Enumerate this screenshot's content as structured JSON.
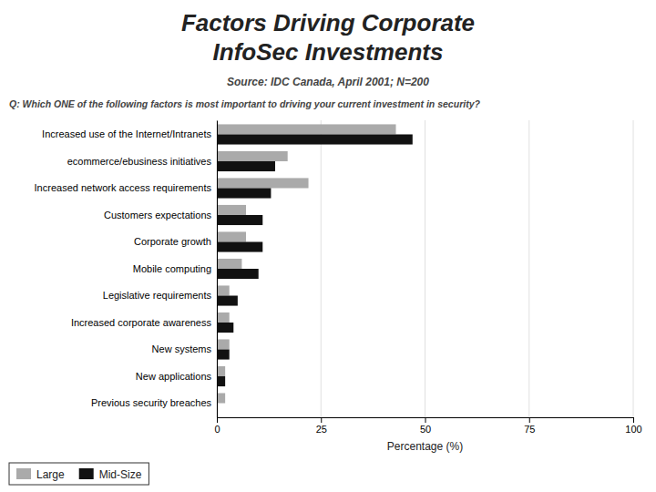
{
  "chart_data": {
    "type": "bar",
    "orientation": "horizontal",
    "title": [
      "Factors Driving Corporate",
      "InfoSec Investments"
    ],
    "subtitle": "Source: IDC Canada, April 2001; N=200",
    "annotations": [
      "Q: Which ONE of the following factors is most important to driving your current investment in security?"
    ],
    "categories": [
      "Increased use of the Internet/Intranets",
      "ecommerce/ebusiness initiatives",
      "Increased network access requirements",
      "Customers expectations",
      "Corporate growth",
      "Mobile computing",
      "Legislative requirements",
      "Increased corporate awareness",
      "New systems",
      "New applications",
      "Previous security breaches"
    ],
    "series": [
      {
        "name": "Large",
        "color": "#aaaaaa",
        "values": [
          43,
          17,
          22,
          7,
          7,
          6,
          3,
          3,
          3,
          2,
          2
        ]
      },
      {
        "name": "Mid-Size",
        "color": "#111111",
        "values": [
          47,
          14,
          13,
          11,
          11,
          10,
          5,
          4,
          3,
          2,
          0
        ]
      }
    ],
    "x_label": "Percentage (%)",
    "xlim": [
      0,
      100
    ],
    "xticks": [
      0,
      25,
      50,
      75,
      100
    ],
    "grid": true,
    "legend": "lower left"
  }
}
